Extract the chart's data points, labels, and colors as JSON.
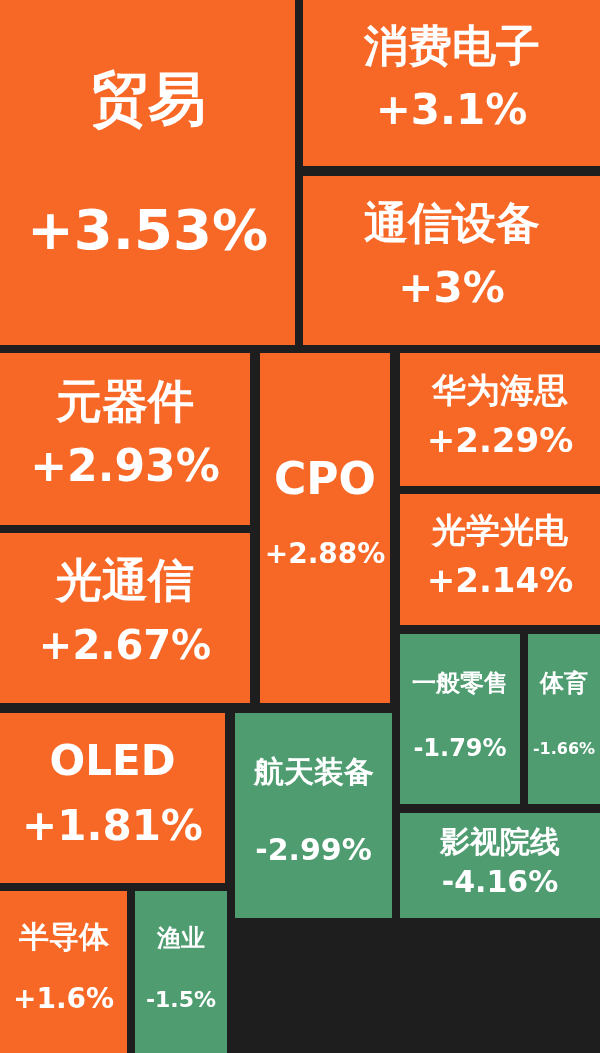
{
  "chart_data": {
    "type": "other",
    "categories": [
      "贸易",
      "消费电子",
      "通信设备",
      "元器件",
      "CPO",
      "华为海思",
      "光学光电",
      "光通信",
      "一般零售",
      "体育",
      "OLED",
      "航天装备",
      "影视院线",
      "半导体",
      "渔业"
    ],
    "values": [
      3.53,
      3.1,
      3,
      2.93,
      2.88,
      2.29,
      2.14,
      2.67,
      -1.79,
      -1.66,
      1.81,
      -2.99,
      -4.16,
      1.6,
      -1.5
    ],
    "value_labels": [
      "+3.53%",
      "+3.1%",
      "+3%",
      "+2.93%",
      "+2.88%",
      "+2.29%",
      "+2.14%",
      "+2.67%",
      "-1.79%",
      "-1.66%",
      "+1.81%",
      "-2.99%",
      "-4.16%",
      "+1.6%",
      "-1.5%"
    ],
    "colors": [
      "#f76726",
      "#f76726",
      "#f76726",
      "#f76726",
      "#f76726",
      "#f76726",
      "#f76726",
      "#f76726",
      "#4e9c70",
      "#4e9c70",
      "#f76726",
      "#4e9c70",
      "#4e9c70",
      "#f76726",
      "#4e9c70"
    ]
  }
}
